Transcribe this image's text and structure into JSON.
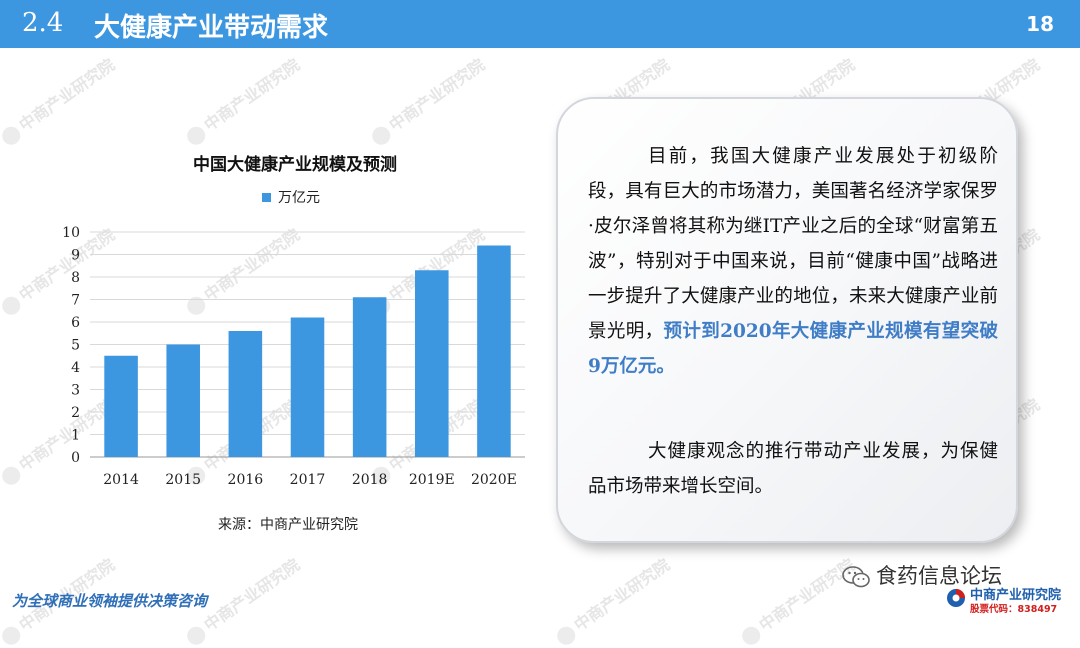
{
  "header": {
    "section_number": "2.4",
    "title": "大健康产业带动需求",
    "page_number": "18",
    "bg_color": "#3d97e0"
  },
  "watermark": {
    "text": "中商产业研究院",
    "url": "www.askci.com/reports"
  },
  "chart_data": {
    "type": "bar",
    "title": "中国大健康产业规模及预测",
    "categories": [
      "2014",
      "2015",
      "2016",
      "2017",
      "2018",
      "2019E",
      "2020E"
    ],
    "series": [
      {
        "name": "万亿元",
        "values": [
          4.5,
          5.0,
          5.6,
          6.2,
          7.1,
          8.3,
          9.4
        ],
        "color": "#3d97e0"
      }
    ],
    "yticks": [
      "0",
      "1",
      "2",
      "3",
      "4",
      "5",
      "6",
      "7",
      "8",
      "9",
      "10"
    ],
    "ylim": [
      0,
      10
    ],
    "grid": true,
    "legend_position": "top"
  },
  "source": "来源：中商产业研究院",
  "textbox": {
    "para1_normal": "目前，我国大健康产业发展处于初级阶段，具有巨大的市场潜力，美国著名经济学家保罗·皮尔泽曾将其称为继IT产业之后的全球“财富第五波”，特别对于中国来说，目前“健康中国”战略进一步提升了大健康产业的地位，未来大健康产业前景光明，",
    "para1_highlight": "预计到2020年大健康产业规模有望突破9万亿元。",
    "para2": "大健康观念的推行带动产业发展，为保健品市场带来增长空间。",
    "highlight_color": "#3f7dc6"
  },
  "footer": {
    "slogan": "为全球商业领袖提供决策咨询",
    "wechat_name": "食药信息论坛",
    "brand_name": "中商产业研究院",
    "brand_code": "股票代码：838497"
  }
}
